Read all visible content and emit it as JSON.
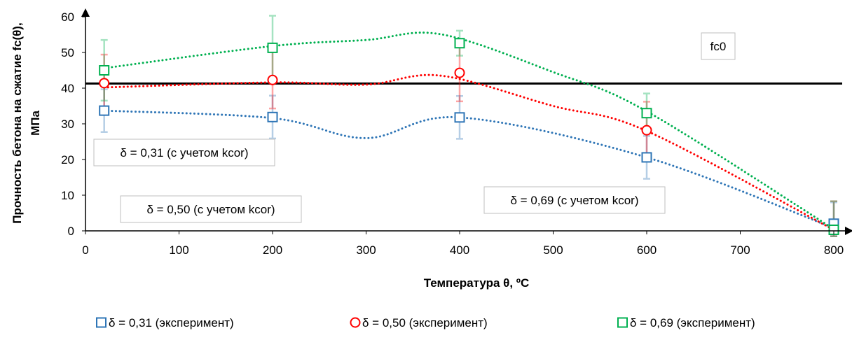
{
  "chart_data": {
    "type": "line",
    "title": "",
    "xlabel": "Температура θ, ºС",
    "ylabel": [
      "Прочность бетона на сжатие fc(θ),",
      "МПа"
    ],
    "xlim": [
      0,
      800
    ],
    "ylim": [
      0,
      60
    ],
    "x_ticks": [
      "0",
      "100",
      "200",
      "300",
      "400",
      "500",
      "600",
      "700",
      "800"
    ],
    "y_ticks": [
      "0",
      "10",
      "20",
      "30",
      "40",
      "50",
      "60"
    ],
    "grid": false,
    "legend_position": "bottom",
    "reference_line": {
      "label": "fc0",
      "y": 41.3,
      "color": "#000000"
    },
    "series": [
      {
        "name": "δ = 0,31 (эксперимент)",
        "marker": "square",
        "color": "#2e75b6",
        "trend_label": "δ = 0,31 (с учетом kcor)",
        "points": [
          {
            "x": 20,
            "y": 33.7,
            "err": 6.0
          },
          {
            "x": 200,
            "y": 31.9,
            "err": 6.0
          },
          {
            "x": 400,
            "y": 31.8,
            "err": 6.0
          },
          {
            "x": 600,
            "y": 20.6,
            "err": 6.0
          },
          {
            "x": 800,
            "y": 2.0,
            "err": 6.0
          }
        ],
        "trend": [
          [
            20,
            33.7
          ],
          [
            200,
            31.6
          ],
          [
            300,
            26.0
          ],
          [
            400,
            31.8
          ],
          [
            600,
            20.6
          ],
          [
            800,
            0.8
          ]
        ]
      },
      {
        "name": "δ = 0,50 (эксперимент)",
        "marker": "circle",
        "color": "#ff0000",
        "trend_label": "δ = 0,50 (с учетом kcor)",
        "points": [
          {
            "x": 20,
            "y": 41.4,
            "err": 8.0
          },
          {
            "x": 200,
            "y": 42.3,
            "err": 8.0
          },
          {
            "x": 400,
            "y": 44.3,
            "err": 8.0
          },
          {
            "x": 600,
            "y": 28.2,
            "err": 8.0
          },
          {
            "x": 800,
            "y": 0.3,
            "err": 8.0
          }
        ],
        "trend": [
          [
            20,
            40.2
          ],
          [
            200,
            41.6
          ],
          [
            300,
            41.0
          ],
          [
            380,
            43.5
          ],
          [
            500,
            35.0
          ],
          [
            600,
            28.0
          ],
          [
            800,
            0.3
          ]
        ]
      },
      {
        "name": "δ = 0,69 (эксперимент)",
        "marker": "square",
        "color": "#00b050",
        "trend_label": "δ = 0,69 (с учетом kcor)",
        "points": [
          {
            "x": 20,
            "y": 45.0,
            "err": 8.5
          },
          {
            "x": 200,
            "y": 51.3,
            "err": 9.0
          },
          {
            "x": 400,
            "y": 52.6,
            "err": 3.5
          },
          {
            "x": 600,
            "y": 33.0,
            "err": 5.5
          },
          {
            "x": 800,
            "y": 0.3,
            "err": 8.0
          }
        ],
        "trend": [
          [
            20,
            45.6
          ],
          [
            200,
            51.8
          ],
          [
            300,
            53.5
          ],
          [
            380,
            55.1
          ],
          [
            500,
            44.5
          ],
          [
            600,
            33.5
          ],
          [
            800,
            0.5
          ]
        ]
      }
    ]
  }
}
